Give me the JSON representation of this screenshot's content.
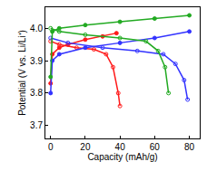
{
  "chart_data": {
    "type": "line",
    "x_label": "Capacity (mAh/g)",
    "y_label": "Potential (V vs. Li/Li⁺)",
    "xlim": [
      -3,
      86
    ],
    "xticks": [
      0,
      20,
      40,
      60,
      80
    ],
    "ylim": [
      3.66,
      4.065
    ],
    "yticks": [
      {
        "value": 3.7,
        "label": "3.7"
      },
      {
        "value": 3.8,
        "label": "3.8"
      },
      {
        "value": 3.9,
        "label": "3.9"
      },
      {
        "value": 4.0,
        "label": "4.0"
      }
    ],
    "grid": false,
    "series": [
      {
        "color": "#ff1a1a",
        "marker": "filled",
        "x": [
          0,
          1,
          5,
          10,
          20,
          30,
          38
        ],
        "values": [
          3.83,
          3.92,
          3.94,
          3.95,
          3.965,
          3.975,
          3.985
        ]
      },
      {
        "color": "#ff1a1a",
        "marker": "open",
        "x": [
          0,
          5,
          15,
          25,
          32,
          36,
          39,
          40
        ],
        "values": [
          3.96,
          3.95,
          3.94,
          3.935,
          3.92,
          3.88,
          3.8,
          3.76
        ]
      },
      {
        "color": "#3333ff",
        "marker": "filled",
        "x": [
          0,
          1,
          5,
          20,
          40,
          60,
          80
        ],
        "values": [
          3.8,
          3.9,
          3.92,
          3.94,
          3.955,
          3.97,
          3.99
        ]
      },
      {
        "color": "#3333ff",
        "marker": "open",
        "x": [
          0,
          10,
          30,
          50,
          65,
          72,
          77,
          79
        ],
        "values": [
          3.97,
          3.955,
          3.94,
          3.93,
          3.92,
          3.89,
          3.84,
          3.78
        ]
      },
      {
        "color": "#22aa22",
        "marker": "filled",
        "x": [
          0,
          1,
          5,
          20,
          40,
          60,
          80
        ],
        "values": [
          3.85,
          3.99,
          4.0,
          4.01,
          4.02,
          4.03,
          4.04
        ]
      },
      {
        "color": "#22aa22",
        "marker": "open",
        "x": [
          0,
          5,
          20,
          40,
          55,
          62,
          66,
          68
        ],
        "values": [
          4.0,
          3.99,
          3.98,
          3.97,
          3.96,
          3.93,
          3.88,
          3.8
        ]
      }
    ]
  }
}
